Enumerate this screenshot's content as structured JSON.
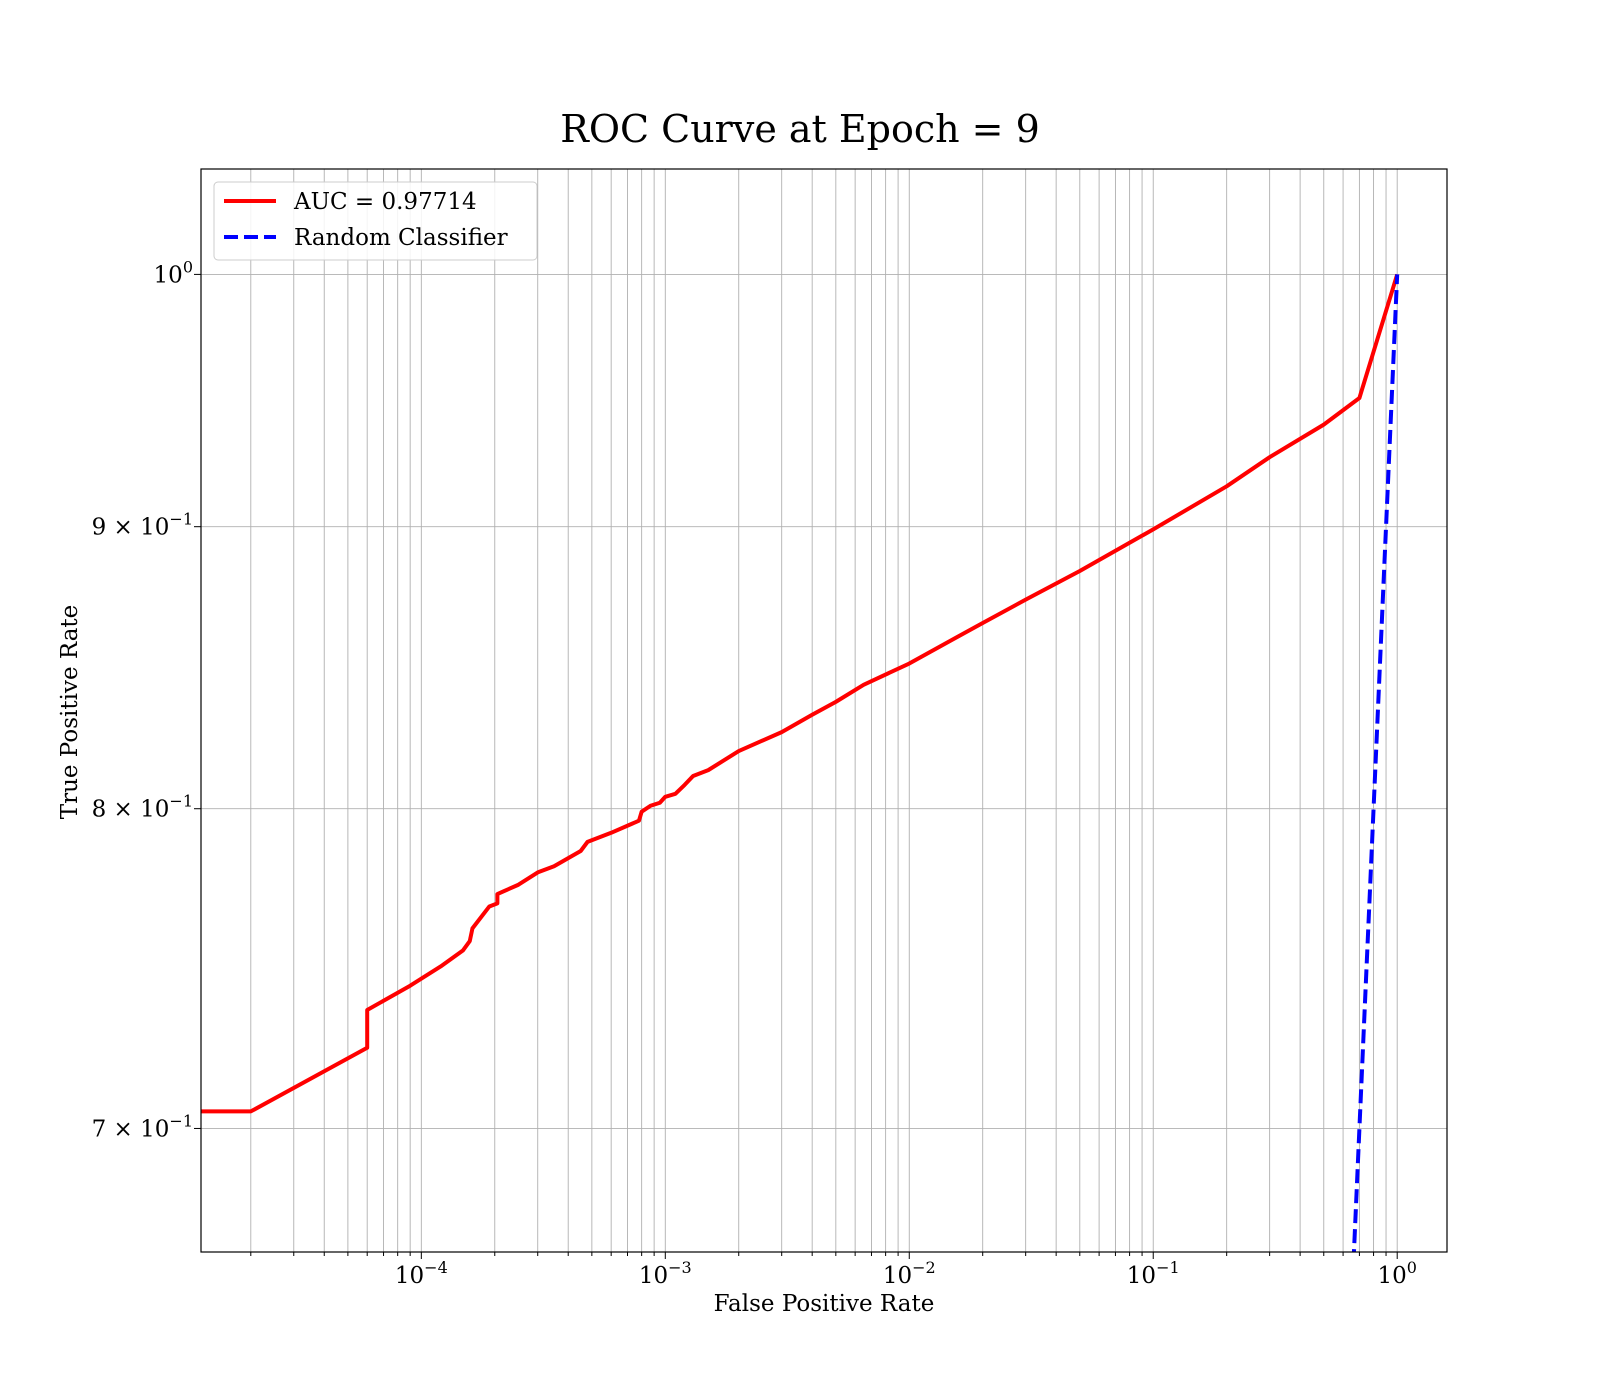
{
  "chart_data": {
    "type": "line",
    "title": "ROC Curve at Epoch = 9",
    "xlabel": "False Positive Rate",
    "ylabel": "True Positive Rate",
    "x_scale": "log",
    "y_scale": "log",
    "xlim": [
      1.25e-05,
      1.6
    ],
    "ylim": [
      0.6648,
      1.045
    ],
    "grid": true,
    "legend_position": "top-left",
    "x_ticks": [
      {
        "value": 0.0001,
        "base": "10",
        "exp": "−4"
      },
      {
        "value": 0.001,
        "base": "10",
        "exp": "−3"
      },
      {
        "value": 0.01,
        "base": "10",
        "exp": "−2"
      },
      {
        "value": 0.1,
        "base": "10",
        "exp": "−1"
      },
      {
        "value": 1,
        "base": "10",
        "exp": "0"
      }
    ],
    "y_ticks": [
      {
        "value": 1.0,
        "base": "10",
        "exp": "0"
      },
      {
        "value": 0.9,
        "base": "9 × 10",
        "exp": "−1"
      },
      {
        "value": 0.8,
        "base": "8 × 10",
        "exp": "−1"
      },
      {
        "value": 0.7,
        "base": "7 × 10",
        "exp": "−1"
      }
    ],
    "series": [
      {
        "name": "AUC = 0.97714",
        "color": "#ff0000",
        "style": "solid",
        "points": [
          [
            1.25e-05,
            0.705
          ],
          [
            2e-05,
            0.705
          ],
          [
            6e-05,
            0.724
          ],
          [
            6e-05,
            0.7355
          ],
          [
            9e-05,
            0.743
          ],
          [
            0.00012,
            0.749
          ],
          [
            0.000148,
            0.754
          ],
          [
            0.000158,
            0.757
          ],
          [
            0.000162,
            0.761
          ],
          [
            0.00019,
            0.768
          ],
          [
            0.000205,
            0.769
          ],
          [
            0.000205,
            0.772
          ],
          [
            0.00025,
            0.775
          ],
          [
            0.0003,
            0.779
          ],
          [
            0.00035,
            0.781
          ],
          [
            0.00045,
            0.786
          ],
          [
            0.00048,
            0.789
          ],
          [
            0.0006,
            0.792
          ],
          [
            0.00073,
            0.795
          ],
          [
            0.00078,
            0.796
          ],
          [
            0.0008,
            0.799
          ],
          [
            0.00087,
            0.801
          ],
          [
            0.00095,
            0.802
          ],
          [
            0.001,
            0.804
          ],
          [
            0.0011,
            0.805
          ],
          [
            0.0012,
            0.808
          ],
          [
            0.0013,
            0.811
          ],
          [
            0.0015,
            0.813
          ],
          [
            0.002,
            0.8195
          ],
          [
            0.003,
            0.826
          ],
          [
            0.004,
            0.832
          ],
          [
            0.005,
            0.8365
          ],
          [
            0.0065,
            0.8425
          ],
          [
            0.01,
            0.85
          ],
          [
            0.015,
            0.8585
          ],
          [
            0.02,
            0.8645
          ],
          [
            0.03,
            0.873
          ],
          [
            0.05,
            0.8835
          ],
          [
            0.1,
            0.899
          ],
          [
            0.2,
            0.9153
          ],
          [
            0.3,
            0.9265
          ],
          [
            0.5,
            0.9392
          ],
          [
            0.7,
            0.9497
          ],
          [
            1.0,
            1.0
          ]
        ]
      },
      {
        "name": "Random Classifier",
        "color": "#0000ff",
        "style": "dashed",
        "points": [
          [
            0.64,
            0.64
          ],
          [
            1.0,
            1.0
          ]
        ]
      }
    ]
  }
}
